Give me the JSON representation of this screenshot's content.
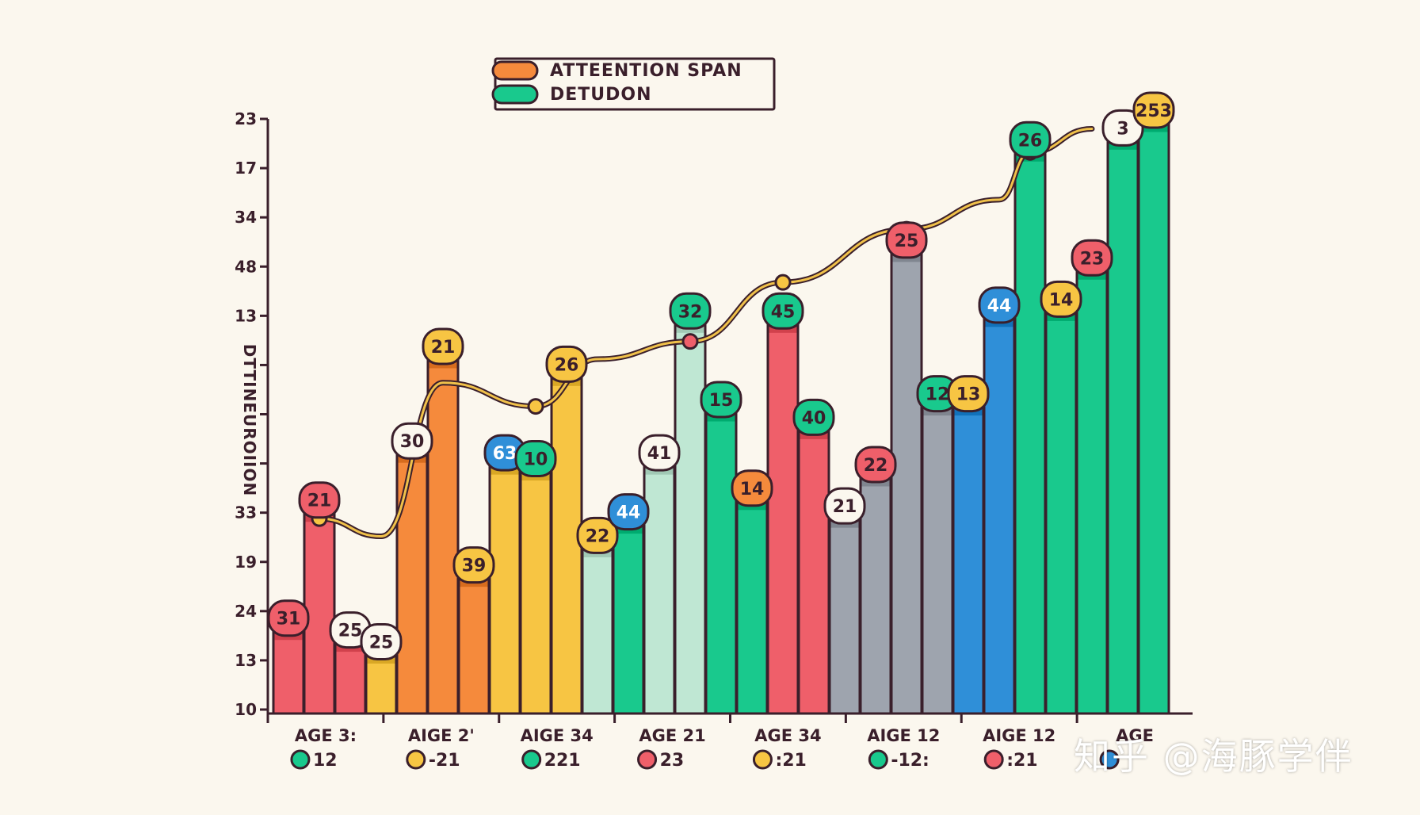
{
  "chart_data": {
    "type": "bar",
    "title": "",
    "xlabel": "",
    "ylabel": "DTTINEUROIION",
    "legend": {
      "placement": "top-center",
      "items": [
        {
          "label": "ATTEENTION SPAN",
          "color": "#f58a3c"
        },
        {
          "label": "DETUDON",
          "color": "#19c98d"
        }
      ]
    },
    "y_ticks": [
      "23",
      "17",
      "34",
      "48",
      "13",
      "",
      "",
      "",
      "33",
      "19",
      "24",
      "13",
      "10"
    ],
    "ylim": [
      0,
      100
    ],
    "categories": [
      {
        "label": "AGE 3:",
        "sub": "12",
        "dot_color": "#19c98d"
      },
      {
        "label": "AIGE 2'",
        "sub": "-21",
        "dot_color": "#f7c543"
      },
      {
        "label": "AIGE 34",
        "sub": "221",
        "dot_color": "#19c98d"
      },
      {
        "label": "AGE 21",
        "sub": "23",
        "dot_color": "#ef5f6a"
      },
      {
        "label": "AGE 34",
        "sub": ":21",
        "dot_color": "#f7c543"
      },
      {
        "label": "AIGE 12",
        "sub": "-12:",
        "dot_color": "#19c98d"
      },
      {
        "label": "AIGE 12",
        "sub": ":21",
        "dot_color": "#ef5f6a"
      },
      {
        "label": "AGE",
        "sub": "",
        "dot_color": "#2f8fd8"
      }
    ],
    "bars": [
      {
        "value": 14,
        "color": "#ef5f6a",
        "label": "31",
        "badge": "#ef5f6a"
      },
      {
        "value": 34,
        "color": "#ef5f6a",
        "label": "21",
        "badge": "#ef5f6a"
      },
      {
        "value": 12,
        "color": "#ef5f6a",
        "label": "25",
        "badge": "#fbf7ee"
      },
      {
        "value": 10,
        "color": "#f7c543",
        "label": "25",
        "badge": "#fbf7ee"
      },
      {
        "value": 44,
        "color": "#f58a3c",
        "label": "30",
        "badge": "#fbf7ee"
      },
      {
        "value": 60,
        "color": "#f58a3c",
        "label": "21",
        "badge": "#f7c543"
      },
      {
        "value": 23,
        "color": "#f58a3c",
        "label": "39",
        "badge": "#f7c543"
      },
      {
        "value": 42,
        "color": "#f7c543",
        "label": "63",
        "badge": "#2f8fd8"
      },
      {
        "value": 41,
        "color": "#f7c543",
        "label": "10",
        "badge": "#19c98d"
      },
      {
        "value": 57,
        "color": "#f7c543",
        "label": "26",
        "badge": "#f7c543"
      },
      {
        "value": 28,
        "color": "#bfe7d3",
        "label": "22",
        "badge": "#f7c543"
      },
      {
        "value": 32,
        "color": "#19c98d",
        "label": "44",
        "badge": "#2f8fd8"
      },
      {
        "value": 42,
        "color": "#bfe7d3",
        "label": "41",
        "badge": "#fbf7ee"
      },
      {
        "value": 66,
        "color": "#bfe7d3",
        "label": "32",
        "badge": "#19c98d"
      },
      {
        "value": 51,
        "color": "#19c98d",
        "label": "15",
        "badge": "#19c98d"
      },
      {
        "value": 36,
        "color": "#19c98d",
        "label": "14",
        "badge": "#f58a3c"
      },
      {
        "value": 66,
        "color": "#ef5f6a",
        "label": "45",
        "badge": "#19c98d"
      },
      {
        "value": 48,
        "color": "#ef5f6a",
        "label": "40",
        "badge": "#19c98d"
      },
      {
        "value": 33,
        "color": "#9ea4ae",
        "label": "21",
        "badge": "#fbf7ee"
      },
      {
        "value": 40,
        "color": "#9ea4ae",
        "label": "22",
        "badge": "#ef5f6a"
      },
      {
        "value": 78,
        "color": "#9ea4ae",
        "label": "25",
        "badge": "#ef5f6a"
      },
      {
        "value": 52,
        "color": "#9ea4ae",
        "label": "12",
        "badge": "#19c98d"
      },
      {
        "value": 52,
        "color": "#2f8fd8",
        "label": "13",
        "badge": "#f7c543"
      },
      {
        "value": 67,
        "color": "#2f8fd8",
        "label": "44",
        "badge": "#2f8fd8"
      },
      {
        "value": 95,
        "color": "#19c98d",
        "label": "26",
        "badge": "#19c98d"
      },
      {
        "value": 68,
        "color": "#19c98d",
        "label": "14",
        "badge": "#f7c543"
      },
      {
        "value": 75,
        "color": "#19c98d",
        "label": "23",
        "badge": "#ef5f6a"
      },
      {
        "value": 97,
        "color": "#19c98d",
        "label": "3",
        "badge": "#fbf7ee"
      },
      {
        "value": 100,
        "color": "#19c98d",
        "label": "253",
        "badge": "#f7c543"
      }
    ],
    "trend_line": [
      {
        "bar": 1,
        "value": 33,
        "color": "#f7c543"
      },
      {
        "bar": 3,
        "value": 30
      },
      {
        "bar": 5,
        "value": 56
      },
      {
        "bar": 8,
        "value": 52,
        "color": "#f7c543"
      },
      {
        "bar": 10,
        "value": 60
      },
      {
        "bar": 13,
        "value": 63,
        "color": "#ef5f6a"
      },
      {
        "bar": 16,
        "value": 73,
        "color": "#f7c543"
      },
      {
        "bar": 20,
        "value": 82,
        "color": "#f7c543"
      },
      {
        "bar": 23,
        "value": 87
      },
      {
        "bar": 24,
        "value": 95,
        "color": "#ef5f6a"
      },
      {
        "bar": 26,
        "value": 99
      }
    ]
  },
  "watermark": "知乎 @海豚学伴"
}
